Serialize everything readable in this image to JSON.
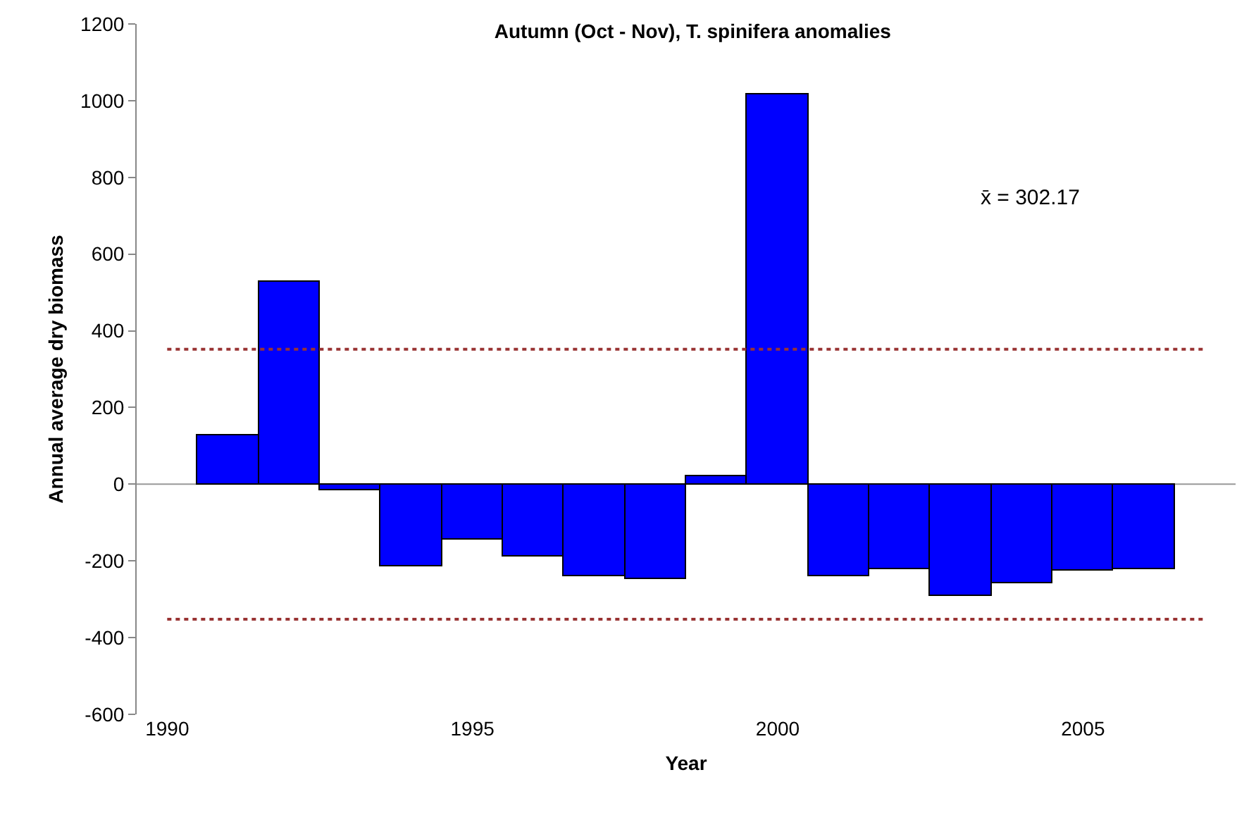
{
  "chart_data": {
    "type": "bar",
    "title": "Autumn (Oct - Nov), T. spinifera anomalies",
    "xlabel": "Year",
    "ylabel": "Annual average dry biomass",
    "x": [
      1991,
      1992,
      1993,
      1994,
      1995,
      1996,
      1997,
      1998,
      1999,
      2000,
      2001,
      2002,
      2003,
      2004,
      2005,
      2006
    ],
    "values": [
      129,
      529,
      -16,
      -213,
      -145,
      -187,
      -240,
      -248,
      19,
      1016,
      -240,
      -221,
      -292,
      -260,
      -226,
      -221
    ],
    "color": "#0000ff",
    "xlim": [
      1989.5,
      2007.5
    ],
    "xticks": [
      1990,
      1995,
      2000,
      2005
    ],
    "ylim": [
      -600,
      1200
    ],
    "yticks": [
      -600,
      -400,
      -200,
      0,
      200,
      400,
      600,
      800,
      1000,
      1200
    ],
    "ref_lines": [
      {
        "axis": "y",
        "value": 0,
        "label": null,
        "color": "#999999",
        "line_style": "solid"
      },
      {
        "axis": "y",
        "value": 352,
        "label": null,
        "color": "#993333",
        "line_style": "dotted"
      },
      {
        "axis": "y",
        "value": -352,
        "label": null,
        "color": "#993333",
        "line_style": "dotted"
      }
    ],
    "annotations": [
      "x̄ = 302.17"
    ],
    "grid": false,
    "legend": false
  }
}
